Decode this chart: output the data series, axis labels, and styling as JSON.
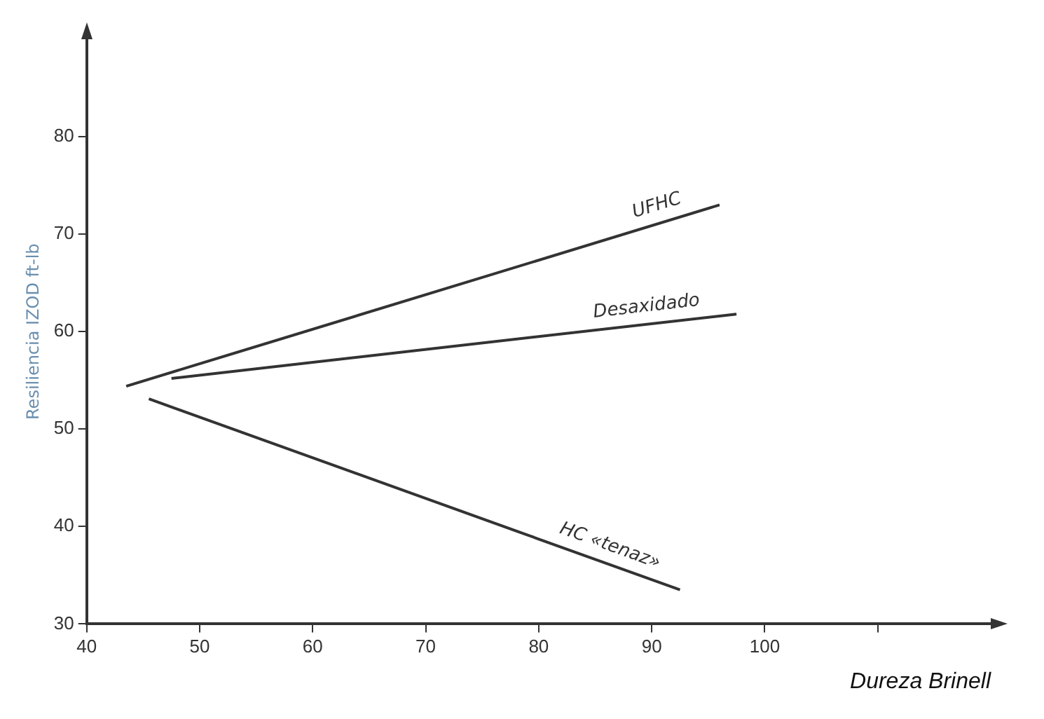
{
  "chart_data": {
    "type": "line",
    "xlabel": "Dureza Brinell",
    "ylabel": "Resiliencia IZOD ft-lb",
    "series": [
      {
        "name": "UFHC",
        "color": "#333333",
        "x": [
          43.5,
          96
        ],
        "values": [
          54.4,
          73
        ]
      },
      {
        "name": "Desaxidado",
        "color": "#333333",
        "x": [
          47.5,
          97.5
        ],
        "values": [
          55.2,
          61.8
        ]
      },
      {
        "name": "HC «tenaz»",
        "color": "#333333",
        "x": [
          45.5,
          92.5
        ],
        "values": [
          53.1,
          33.5
        ]
      }
    ],
    "xlim": [
      40,
      120
    ],
    "xticks": [
      40,
      50,
      60,
      70,
      80,
      90,
      100,
      {
        "value": 110,
        "label": null
      }
    ],
    "ylim": [
      30,
      90
    ],
    "yticks": [
      30,
      40,
      50,
      60,
      70,
      80
    ],
    "grid": false,
    "legend": false,
    "marker": "none",
    "line_style": "solid"
  }
}
